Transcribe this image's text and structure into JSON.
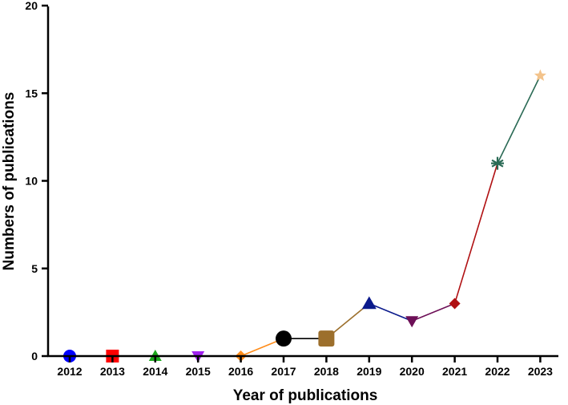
{
  "chart_data": {
    "type": "line",
    "title": "",
    "xlabel": "Year of publications",
    "ylabel": "Numbers of publications",
    "ylim": [
      0,
      20
    ],
    "yticks": [
      0,
      5,
      10,
      15,
      20
    ],
    "grid": false,
    "legend": "none",
    "categories": [
      "2012",
      "2013",
      "2014",
      "2015",
      "2016",
      "2017",
      "2018",
      "2019",
      "2020",
      "2021",
      "2022",
      "2023"
    ],
    "values": [
      0,
      0,
      0,
      0,
      0,
      1,
      1,
      3,
      2,
      3,
      11,
      16
    ],
    "points": [
      {
        "marker": "circle",
        "color": "#0000ff"
      },
      {
        "marker": "square",
        "color": "#ff0000"
      },
      {
        "marker": "triangle-up",
        "color": "#1aa81a"
      },
      {
        "marker": "triangle-down",
        "color": "#a020f0"
      },
      {
        "marker": "diamond",
        "color": "#ff8c1a"
      },
      {
        "marker": "circle",
        "color": "#000000"
      },
      {
        "marker": "rounded-square",
        "color": "#9c6f2c"
      },
      {
        "marker": "triangle-up",
        "color": "#0b1a8c"
      },
      {
        "marker": "triangle-down",
        "color": "#6d0f57"
      },
      {
        "marker": "diamond",
        "color": "#b01012"
      },
      {
        "marker": "asterisk",
        "color": "#2a6a55"
      },
      {
        "marker": "star",
        "color": "#f3c38b"
      }
    ]
  }
}
